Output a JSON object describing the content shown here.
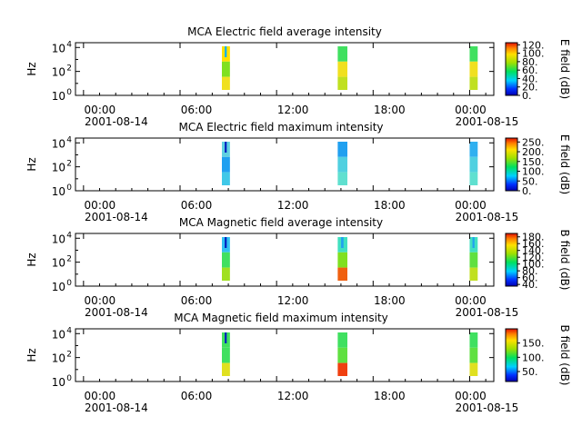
{
  "chart_data": [
    {
      "type": "heatmap",
      "title": "MCA  Electric field average intensity",
      "ylabel": "Hz",
      "colorbar_label": "E field (dB)",
      "colorbar_ticks": [
        "0.",
        "20.",
        "40.",
        "60.",
        "80.",
        "100.",
        "120."
      ],
      "colorbar_range": [
        0,
        125
      ],
      "y_ticks": [
        {
          "base": "10",
          "exp": "0"
        },
        {
          "base": "10",
          "exp": "2"
        },
        {
          "base": "10",
          "exp": "4"
        }
      ],
      "y_log_range": [
        0,
        4.4
      ],
      "x_ticks": [
        {
          "time": "00:00",
          "date": "2001-08-14"
        },
        {
          "time": "06:00",
          "date": ""
        },
        {
          "time": "12:00",
          "date": ""
        },
        {
          "time": "18:00",
          "date": ""
        },
        {
          "time": "00:00",
          "date": "2001-08-15"
        }
      ],
      "x_range_hours": [
        -0.5,
        25.5
      ],
      "passes": [
        {
          "start_hour": 8.6,
          "end_hour": 9.1,
          "low_color": "#f0e020",
          "mid_color": "#80e020",
          "high_color": "#ffe000",
          "spike_color": "#00b0ff"
        },
        {
          "start_hour": 15.8,
          "end_hour": 16.4,
          "low_color": "#c0e020",
          "mid_color": "#f0e020",
          "high_color": "#40e060",
          "spike_color": "#40e060"
        },
        {
          "start_hour": 24.0,
          "end_hour": 24.5,
          "low_color": "#c0e020",
          "mid_color": "#f0e020",
          "high_color": "#40e060",
          "spike_color": "#40e060"
        }
      ]
    },
    {
      "type": "heatmap",
      "title": "MCA  Electric field maximum intensity",
      "ylabel": "Hz",
      "colorbar_label": "E field (dB)",
      "colorbar_ticks": [
        "0.",
        "50.",
        "100.",
        "150.",
        "200.",
        "250."
      ],
      "colorbar_range": [
        0,
        270
      ],
      "y_ticks": [
        {
          "base": "10",
          "exp": "0"
        },
        {
          "base": "10",
          "exp": "2"
        },
        {
          "base": "10",
          "exp": "4"
        }
      ],
      "y_log_range": [
        0,
        4.4
      ],
      "x_ticks": [
        {
          "time": "00:00",
          "date": "2001-08-14"
        },
        {
          "time": "06:00",
          "date": ""
        },
        {
          "time": "12:00",
          "date": ""
        },
        {
          "time": "18:00",
          "date": ""
        },
        {
          "time": "00:00",
          "date": "2001-08-15"
        }
      ],
      "x_range_hours": [
        -0.5,
        25.5
      ],
      "passes": [
        {
          "start_hour": 8.6,
          "end_hour": 9.1,
          "low_color": "#40c8e8",
          "mid_color": "#20a0f0",
          "high_color": "#60d0e0",
          "spike_color": "#0020c0"
        },
        {
          "start_hour": 15.8,
          "end_hour": 16.4,
          "low_color": "#60e0d0",
          "mid_color": "#50d0e0",
          "high_color": "#20a0f0",
          "spike_color": "#20a0f0"
        },
        {
          "start_hour": 24.0,
          "end_hour": 24.5,
          "low_color": "#60e0d0",
          "mid_color": "#50d0e0",
          "high_color": "#30b0f0",
          "spike_color": "#30b0f0"
        }
      ]
    },
    {
      "type": "heatmap",
      "title": "MCA  Magnetic field average intensity",
      "ylabel": "Hz",
      "colorbar_label": "B field (dB)",
      "colorbar_ticks": [
        "40.",
        "60.",
        "80.",
        "100.",
        "120.",
        "140.",
        "160.",
        "180."
      ],
      "colorbar_range": [
        35,
        190
      ],
      "y_ticks": [
        {
          "base": "10",
          "exp": "0"
        },
        {
          "base": "10",
          "exp": "2"
        },
        {
          "base": "10",
          "exp": "4"
        }
      ],
      "y_log_range": [
        0,
        4.4
      ],
      "x_ticks": [
        {
          "time": "00:00",
          "date": "2001-08-14"
        },
        {
          "time": "06:00",
          "date": ""
        },
        {
          "time": "12:00",
          "date": ""
        },
        {
          "time": "18:00",
          "date": ""
        },
        {
          "time": "00:00",
          "date": "2001-08-15"
        }
      ],
      "x_range_hours": [
        -0.5,
        25.5
      ],
      "passes": [
        {
          "start_hour": 8.6,
          "end_hour": 9.1,
          "low_color": "#a0e020",
          "mid_color": "#40e060",
          "high_color": "#30c0f0",
          "spike_color": "#0020c0"
        },
        {
          "start_hour": 15.8,
          "end_hour": 16.4,
          "low_color": "#f06010",
          "mid_color": "#80e020",
          "high_color": "#40e0c0",
          "spike_color": "#20a0f0"
        },
        {
          "start_hour": 24.0,
          "end_hour": 24.5,
          "low_color": "#c0e020",
          "mid_color": "#60e040",
          "high_color": "#40e0c0",
          "spike_color": "#20a0f0"
        }
      ]
    },
    {
      "type": "heatmap",
      "title": "MCA  Magnetic field maximum intensity",
      "ylabel": "Hz",
      "colorbar_label": "B field (dB)",
      "colorbar_ticks": [
        "50.",
        "100.",
        "150."
      ],
      "colorbar_range": [
        15,
        200
      ],
      "y_ticks": [
        {
          "base": "10",
          "exp": "0"
        },
        {
          "base": "10",
          "exp": "2"
        },
        {
          "base": "10",
          "exp": "4"
        }
      ],
      "y_log_range": [
        0,
        4.4
      ],
      "x_ticks": [
        {
          "time": "00:00",
          "date": "2001-08-14"
        },
        {
          "time": "06:00",
          "date": ""
        },
        {
          "time": "12:00",
          "date": ""
        },
        {
          "time": "18:00",
          "date": ""
        },
        {
          "time": "00:00",
          "date": "2001-08-15"
        }
      ],
      "x_range_hours": [
        -0.5,
        25.5
      ],
      "passes": [
        {
          "start_hour": 8.6,
          "end_hour": 9.1,
          "low_color": "#e0e020",
          "mid_color": "#40e060",
          "high_color": "#40e060",
          "spike_color": "#0020c0"
        },
        {
          "start_hour": 15.8,
          "end_hour": 16.4,
          "low_color": "#f04010",
          "mid_color": "#60e040",
          "high_color": "#40e060",
          "spike_color": "#40e060"
        },
        {
          "start_hour": 24.0,
          "end_hour": 24.5,
          "low_color": "#e0e020",
          "mid_color": "#60e040",
          "high_color": "#40e060",
          "spike_color": "#40e060"
        }
      ]
    }
  ]
}
